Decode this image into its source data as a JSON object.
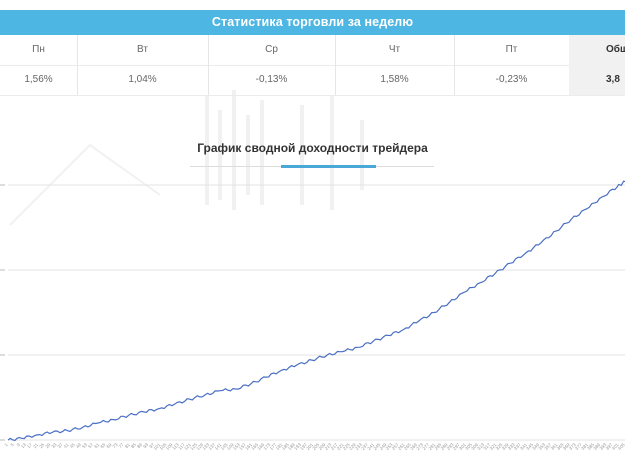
{
  "stats": {
    "title": "Статистика торговли за неделю",
    "days": [
      {
        "label": "Пн",
        "value": "1,56%"
      },
      {
        "label": "Вт",
        "value": "1,04%"
      },
      {
        "label": "Ср",
        "value": "-0,13%"
      },
      {
        "label": "Чт",
        "value": "1,58%"
      },
      {
        "label": "Пт",
        "value": "-0,23%"
      }
    ],
    "total": {
      "label": "Общ",
      "value": "3,8"
    }
  },
  "chart": {
    "title": "График сводной доходности трейдера"
  },
  "chart_data": {
    "type": "line",
    "title": "График сводной доходности трейдера",
    "xlabel": "",
    "ylabel": "",
    "x_start": 1,
    "x_step": 4,
    "x_count": 102,
    "xlim": [
      1,
      405
    ],
    "ylim": [
      0,
      300
    ],
    "grid": true,
    "color": "#4a6fc4",
    "series": [
      {
        "points": [
          [
            1,
            0
          ],
          [
            10,
            2
          ],
          [
            20,
            6
          ],
          [
            30,
            9
          ],
          [
            40,
            11
          ],
          [
            50,
            15
          ],
          [
            60,
            20
          ],
          [
            70,
            24
          ],
          [
            80,
            29
          ],
          [
            90,
            33
          ],
          [
            100,
            37
          ],
          [
            110,
            42
          ],
          [
            120,
            48
          ],
          [
            130,
            53
          ],
          [
            140,
            58
          ],
          [
            150,
            60
          ],
          [
            160,
            66
          ],
          [
            170,
            74
          ],
          [
            180,
            82
          ],
          [
            190,
            88
          ],
          [
            200,
            94
          ],
          [
            210,
            100
          ],
          [
            220,
            104
          ],
          [
            230,
            109
          ],
          [
            240,
            116
          ],
          [
            250,
            123
          ],
          [
            260,
            130
          ],
          [
            270,
            140
          ],
          [
            280,
            150
          ],
          [
            290,
            162
          ],
          [
            300,
            174
          ],
          [
            310,
            185
          ],
          [
            320,
            196
          ],
          [
            330,
            208
          ],
          [
            340,
            220
          ],
          [
            350,
            232
          ],
          [
            360,
            246
          ],
          [
            370,
            260
          ],
          [
            380,
            272
          ],
          [
            390,
            286
          ],
          [
            400,
            298
          ],
          [
            405,
            304
          ]
        ]
      }
    ]
  }
}
